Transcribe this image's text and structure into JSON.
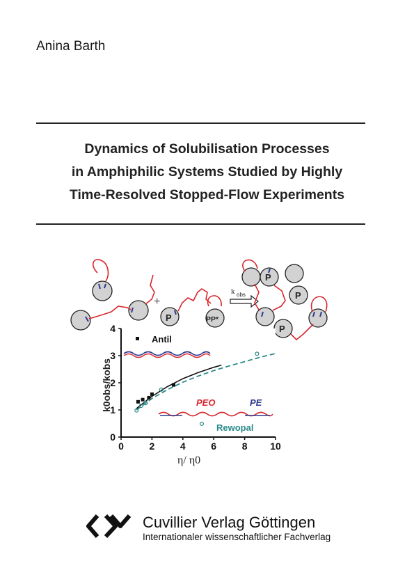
{
  "author": "Anina Barth",
  "title_lines": [
    "Dynamics of Solubilisation Processes",
    "in Amphiphilic Systems Studied by Highly",
    "Time-Resolved Stopped-Flow Experiments"
  ],
  "scheme": {
    "plus": "+",
    "probe_label": "P",
    "paired_probe_label": "PP*",
    "rate_label": "k",
    "rate_subscript": "obs"
  },
  "chart_data": {
    "type": "scatter",
    "xlabel": "η/ η0",
    "ylabel": "k0obs/kobs",
    "xlim": [
      0,
      10
    ],
    "ylim": [
      0,
      4
    ],
    "x_ticks": [
      "0",
      "2",
      "4",
      "6",
      "8",
      "10"
    ],
    "y_ticks": [
      "0",
      "1",
      "2",
      "3",
      "4"
    ],
    "legend": {
      "antil": "Antil",
      "peo": "PEO",
      "pe": "PE",
      "rewopal": "Rewopal"
    },
    "series": [
      {
        "name": "Antil",
        "marker": "filled-square",
        "color": "#111111",
        "x": [
          1.1,
          1.4,
          1.8,
          2.0,
          3.4
        ],
        "y": [
          1.3,
          1.38,
          1.45,
          1.58,
          1.92
        ]
      },
      {
        "name": "Rewopal",
        "marker": "open-circle",
        "color": "#2a8a8a",
        "x": [
          1.0,
          1.3,
          1.6,
          2.6,
          8.8
        ],
        "y": [
          0.98,
          1.15,
          1.25,
          1.75,
          3.07
        ]
      }
    ],
    "fit_antil": {
      "x": [
        1.0,
        1.5,
        2.0,
        3.0,
        4.0,
        5.0,
        6.0,
        6.5
      ],
      "y": [
        1.05,
        1.28,
        1.5,
        1.86,
        2.15,
        2.38,
        2.57,
        2.65
      ]
    },
    "fit_rewopal": {
      "x": [
        1.0,
        2.0,
        3.0,
        4.0,
        5.0,
        6.0,
        7.0,
        8.0,
        9.0,
        10.0
      ],
      "y": [
        1.0,
        1.42,
        1.75,
        2.02,
        2.25,
        2.45,
        2.62,
        2.78,
        2.94,
        3.08
      ]
    },
    "colors": {
      "red": "#d9262c",
      "blue": "#2c3a8f",
      "teal": "#2a8a8a"
    }
  },
  "publisher": {
    "name": "Cuvillier Verlag Göttingen",
    "subtitle": "Internationaler wissenschaftlicher Fachverlag"
  }
}
